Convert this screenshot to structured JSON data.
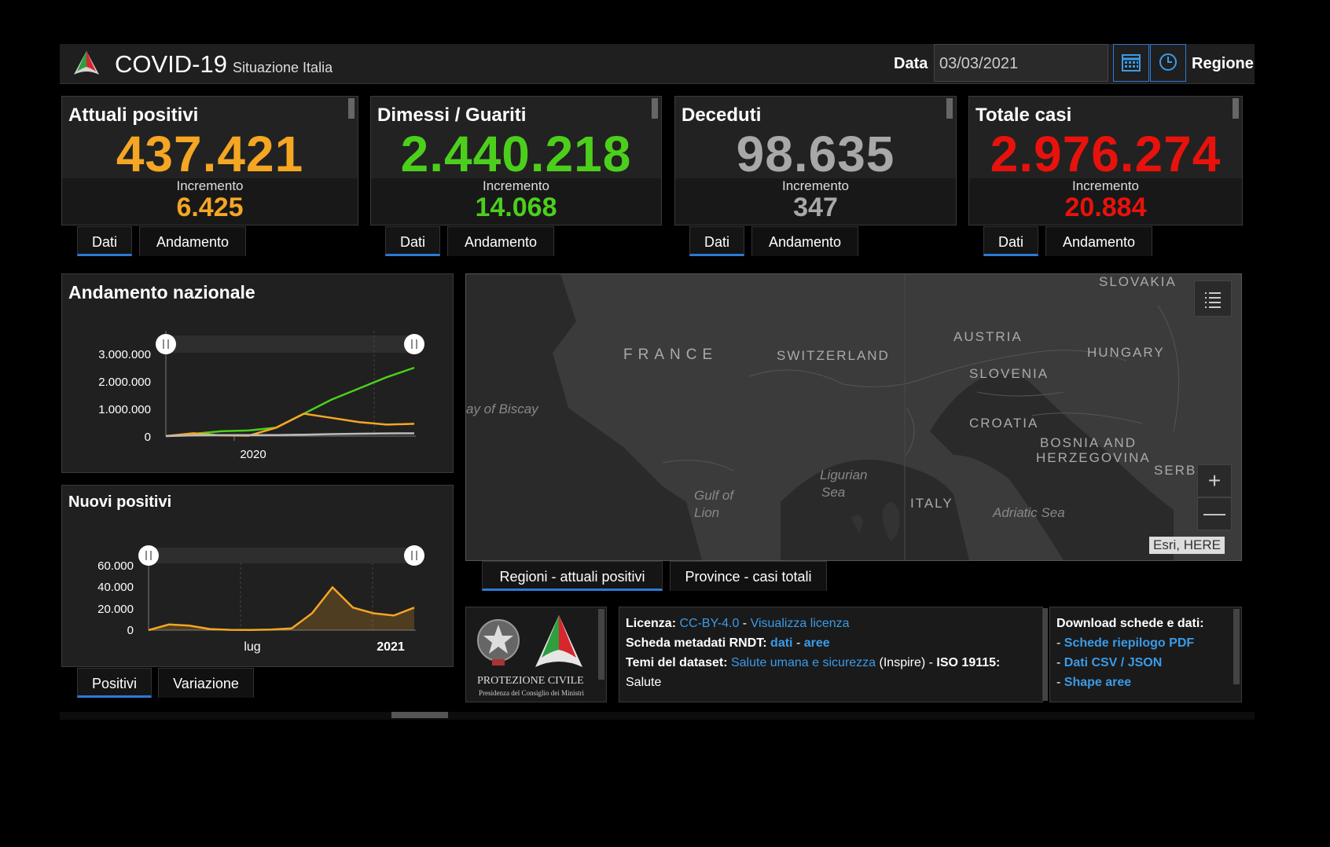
{
  "header": {
    "title": "COVID-19",
    "subtitle": "Situazione Italia",
    "date_label": "Data",
    "date_value": "03/03/2021",
    "region_label": "Regione"
  },
  "kpis": [
    {
      "title": "Attuali positivi",
      "value": "437.421",
      "increment_label": "Incremento",
      "increment": "6.425",
      "color": "#f5a623"
    },
    {
      "title": "Dimessi / Guariti",
      "value": "2.440.218",
      "increment_label": "Incremento",
      "increment": "14.068",
      "color": "#4ccf1c"
    },
    {
      "title": "Deceduti",
      "value": "98.635",
      "increment_label": "Incremento",
      "increment": "347",
      "color": "#a8a8a8"
    },
    {
      "title": "Totale casi",
      "value": "2.976.274",
      "increment_label": "Incremento",
      "increment": "20.884",
      "color": "#e8120c"
    }
  ],
  "kpi_tabs": {
    "dati": "Dati",
    "andamento": "Andamento"
  },
  "national": {
    "title": "Andamento nazionale",
    "yticks": [
      "3.000.000",
      "2.000.000",
      "1.000.000",
      "0"
    ],
    "xtick": "2020"
  },
  "new_positives": {
    "title": "Nuovi positivi",
    "yticks": [
      "60.000",
      "40.000",
      "20.000",
      "0"
    ],
    "xticks": [
      "lug",
      "2021"
    ],
    "tabs": [
      "Positivi",
      "Variazione"
    ]
  },
  "map": {
    "labels": [
      "FRANCE",
      "SWITZERLAND",
      "AUSTRIA",
      "HUNGARY",
      "SLOVAKIA",
      "SLOVENIA",
      "CROATIA",
      "BOSNIA AND",
      "HERZEGOVINA",
      "SERBIA",
      "ITALY"
    ],
    "seas": [
      "ay of Biscay",
      "Ligurian",
      "Sea",
      "Gulf of",
      "Lion",
      "Adriatic Sea"
    ],
    "attribution": "Esri, HERE",
    "tabs": [
      "Regioni - attuali positivi",
      "Province - casi totali"
    ]
  },
  "logo_panel": {
    "line1": "PROTEZIONE CIVILE",
    "line2": "Presidenza del Consiglio dei Ministri"
  },
  "info": {
    "license_label": "Licenza:",
    "license_value": "CC-BY-4.0",
    "license_sep": " - ",
    "license_link": "Visualizza licenza",
    "rndt_label": "Scheda metadati RNDT:",
    "rndt_link1": "dati",
    "rndt_sep": " - ",
    "rndt_link2": "aree",
    "temi_label": "Temi del dataset:",
    "temi_link": "Salute umana e sicurezza",
    "temi_rest": " (Inspire) - ",
    "iso_label": "ISO 19115:",
    "iso_value": "Salute"
  },
  "downloads": {
    "title": "Download schede e dati:",
    "items": [
      "Schede riepilogo PDF",
      "Dati CSV / JSON",
      "Shape aree"
    ]
  },
  "chart_data": [
    {
      "type": "line",
      "title": "Andamento nazionale",
      "ylim": [
        0,
        3000000
      ],
      "x": [
        "2020-02",
        "2020-04",
        "2020-06",
        "2020-08",
        "2020-10",
        "2020-11",
        "2020-12",
        "2021-01",
        "2021-02",
        "2021-03"
      ],
      "series": [
        {
          "color": "#4ccf1c",
          "values": [
            0,
            80000,
            170000,
            200000,
            300000,
            800000,
            1300000,
            1700000,
            2100000,
            2440218
          ]
        },
        {
          "color": "#f5a623",
          "values": [
            0,
            100000,
            25000,
            15000,
            300000,
            800000,
            650000,
            500000,
            410000,
            437421
          ]
        },
        {
          "color": "#bbbbbb",
          "values": [
            0,
            25000,
            34000,
            35000,
            37000,
            50000,
            70000,
            85000,
            95000,
            98635
          ]
        }
      ]
    },
    {
      "type": "area",
      "title": "Nuovi positivi",
      "ylim": [
        0,
        60000
      ],
      "x": [
        "2020-02",
        "2020-03",
        "2020-04",
        "2020-05",
        "2020-06",
        "2020-07",
        "2020-08",
        "2020-09",
        "2020-10",
        "2020-11",
        "2020-12",
        "2021-01",
        "2021-02",
        "2021-03"
      ],
      "series": [
        {
          "color": "#f5a623",
          "values": [
            0,
            5000,
            4000,
            1000,
            300,
            200,
            500,
            1500,
            15000,
            38000,
            20000,
            15000,
            13000,
            20000
          ]
        }
      ]
    }
  ]
}
